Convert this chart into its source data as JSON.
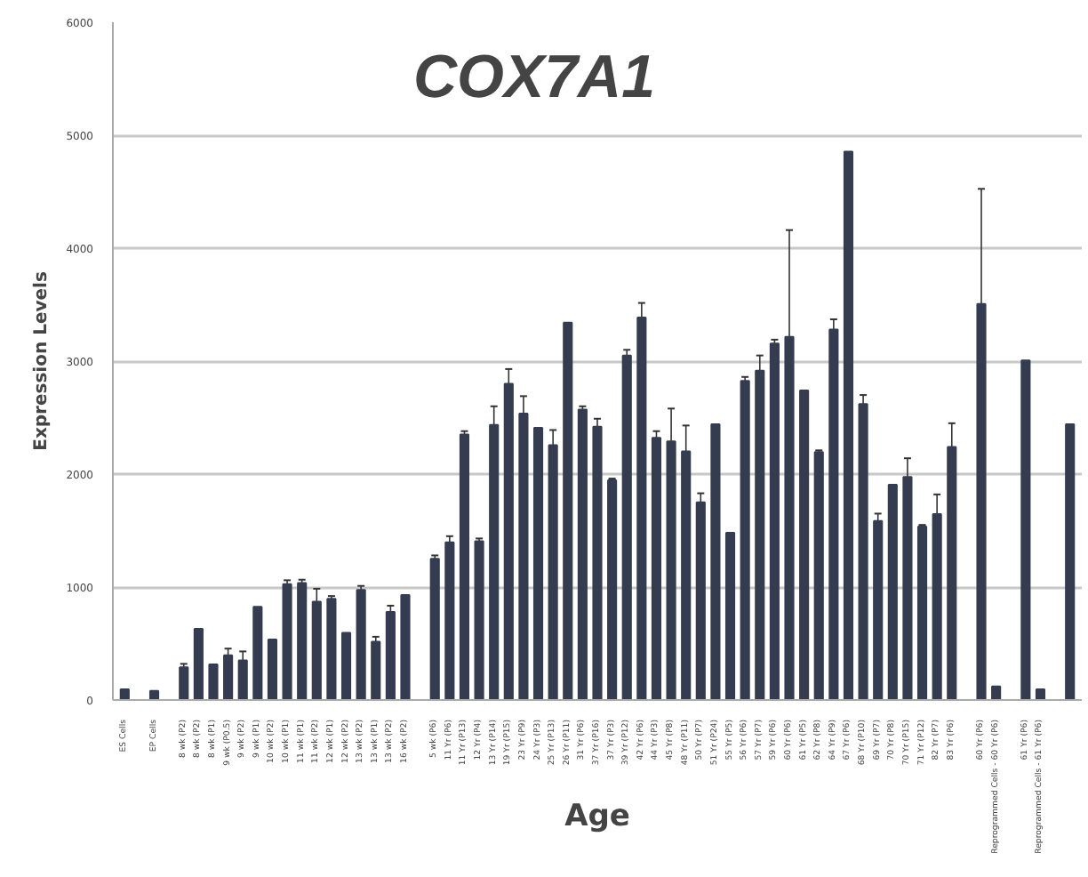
{
  "chart_data": {
    "type": "bar",
    "title": "COX7A1",
    "xlabel": "Age",
    "ylabel": "Expression Levels",
    "categories": [
      "ES Cells",
      null,
      "EP Cells",
      null,
      "8 wk (P2)",
      "8 wk (P2)",
      "8 wk (P1)",
      "9 wk (P0.5)",
      "9 wk (P2)",
      "9 wk (P1)",
      "10 wk (P2)",
      "10 wk (P1)",
      "11 wk (P1)",
      "11 wk (P2)",
      "12 wk (P1)",
      "12 wk (P2)",
      "13 wk (P2)",
      "13 wk (P1)",
      "13 wk (P2)",
      "16 wk (P2)",
      null,
      "5 wk (P6)",
      "11 Yr (P6)",
      "11 Yr (P13)",
      "12 Yr (P4)",
      "13 Yr (P14)",
      "19 Yr (P15)",
      "23 Yr (P9)",
      "24 Yr (P3)",
      "25 Yr (P13)",
      "26 Yr (P11)",
      "31 Yr (P6)",
      "37 Yr (P16)",
      "37 Yr (P3)",
      "39 Yr (P12)",
      "42 Yr (P6)",
      "44 Yr (P3)",
      "45 Yr (P8)",
      "48 Yr (P11)",
      "50 Yr (P7)",
      "51 Yr (P24)",
      "55 Yr (P5)",
      "56 Yr (P6)",
      "57 Yr (P7)",
      "59 Yr (P6)",
      "60 Yr (P6)",
      "61 Yr (P5)",
      "62 Yr (P8)",
      "64 Yr (P9)",
      "67 Yr (P6)",
      "68 Yr (P10)",
      "69 Yr (P7)",
      "70 Yr (P8)",
      "70 Yr (P15)",
      "71 Yr (P12)",
      "82 Yr (P7)",
      "83 Yr (P6)",
      null,
      "60 Yr (P6)",
      "Reprogrammed Cells - 60 Yr (P6)",
      null,
      "61 Yr (P6)",
      "Reprogrammed Cells - 61 Yr (P6)",
      null,
      null
    ],
    "values": [
      95,
      null,
      80,
      null,
      290,
      630,
      315,
      395,
      350,
      825,
      535,
      1025,
      1035,
      870,
      895,
      595,
      975,
      515,
      780,
      930,
      null,
      1250,
      1395,
      2350,
      1405,
      2435,
      2800,
      2535,
      2410,
      2255,
      3340,
      2570,
      2420,
      1945,
      3050,
      3385,
      2320,
      2290,
      2200,
      1750,
      2440,
      1480,
      2825,
      2915,
      3155,
      3215,
      2740,
      2195,
      3280,
      4855,
      2620,
      1585,
      1905,
      1975,
      1535,
      1645,
      2240,
      null,
      3505,
      120,
      null,
      3005,
      95,
      null,
      2440
    ],
    "errors": [
      null,
      null,
      null,
      null,
      [
        290,
        320
      ],
      null,
      null,
      [
        395,
        455
      ],
      [
        350,
        430
      ],
      null,
      null,
      [
        1025,
        1060
      ],
      [
        1035,
        1065
      ],
      [
        870,
        985
      ],
      [
        895,
        920
      ],
      null,
      [
        975,
        1010
      ],
      [
        515,
        560
      ],
      [
        780,
        835
      ],
      null,
      null,
      [
        1250,
        1280
      ],
      [
        1395,
        1450
      ],
      [
        2350,
        2380
      ],
      [
        1405,
        1430
      ],
      [
        2435,
        2600
      ],
      [
        2800,
        2930
      ],
      [
        2535,
        2690
      ],
      null,
      [
        2255,
        2390
      ],
      null,
      [
        2570,
        2600
      ],
      [
        2420,
        2490
      ],
      [
        1945,
        1960
      ],
      [
        3050,
        3100
      ],
      [
        3385,
        3515
      ],
      [
        2320,
        2380
      ],
      [
        2290,
        2580
      ],
      [
        2200,
        2430
      ],
      [
        1750,
        1830
      ],
      null,
      null,
      [
        2825,
        2860
      ],
      [
        2915,
        3050
      ],
      [
        3155,
        3190
      ],
      [
        3215,
        4160
      ],
      null,
      [
        2195,
        2210
      ],
      [
        3280,
        3370
      ],
      null,
      [
        2620,
        2700
      ],
      [
        1585,
        1650
      ],
      null,
      [
        1975,
        2140
      ],
      [
        1535,
        1550
      ],
      [
        1645,
        1820
      ],
      [
        2240,
        2450
      ],
      null,
      [
        3505,
        4525
      ],
      null,
      null,
      null,
      null,
      null,
      null
    ],
    "color": "#353c50",
    "ylim": [
      0,
      6000
    ],
    "yticks": [
      0,
      1000,
      2000,
      3000,
      4000,
      5000,
      6000
    ],
    "grid": "y"
  }
}
